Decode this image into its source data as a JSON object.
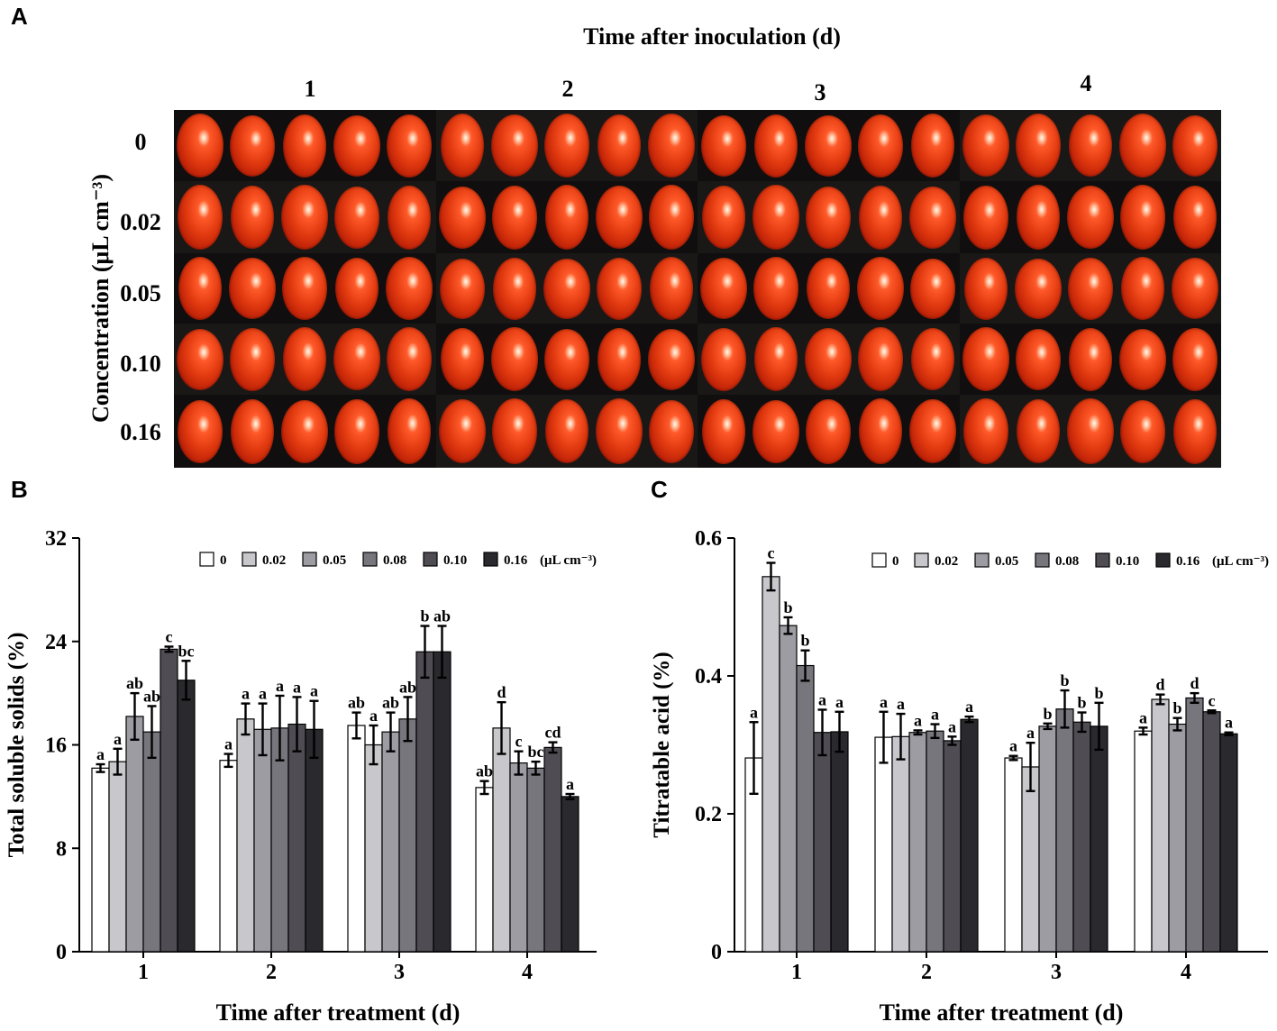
{
  "panel_labels": {
    "a": "A",
    "b": "B",
    "c": "C"
  },
  "photo_panel": {
    "title": "Time after inoculation (d)",
    "days": [
      "1",
      "2",
      "3",
      "4"
    ],
    "concentrations": [
      "0",
      "0.02",
      "0.05",
      "0.10",
      "0.16"
    ],
    "y_axis_label": "Concentration (μL cm⁻³)",
    "fruit_per_cell": 5
  },
  "colors": {
    "series": [
      "#ffffff",
      "#c8c7cc",
      "#9e9ca3",
      "#78767d",
      "#4f4d53",
      "#2a292e"
    ],
    "tomato": "#d8330c",
    "photo_background": "#141212"
  },
  "chart_data": [
    {
      "type": "bar",
      "panel": "B",
      "title": "",
      "xlabel": "Time after treatment (d)",
      "ylabel": "Total soluble solids (%)",
      "categories": [
        "1",
        "2",
        "3",
        "4"
      ],
      "ylim": [
        0,
        32
      ],
      "yticks": [
        "0",
        "8",
        "16",
        "24",
        "32"
      ],
      "legend_suffix": "(μL cm⁻³)",
      "legend_position": "top-right",
      "series": [
        {
          "name": "0",
          "values": [
            14.2,
            14.8,
            17.5,
            12.7
          ],
          "errors": [
            0.3,
            0.5,
            1.0,
            0.5
          ],
          "letters": [
            "a",
            "a",
            "ab",
            "ab"
          ]
        },
        {
          "name": "0.02",
          "values": [
            14.7,
            18.0,
            16.0,
            17.3
          ],
          "errors": [
            1.0,
            1.2,
            1.5,
            2.0
          ],
          "letters": [
            "a",
            "a",
            "a",
            "d"
          ]
        },
        {
          "name": "0.05",
          "values": [
            18.2,
            17.2,
            17.0,
            14.6
          ],
          "errors": [
            1.8,
            2.0,
            1.5,
            0.9
          ],
          "letters": [
            "ab",
            "a",
            "ab",
            "c"
          ]
        },
        {
          "name": "0.08",
          "values": [
            17.0,
            17.3,
            18.0,
            14.2
          ],
          "errors": [
            2.0,
            2.5,
            1.7,
            0.5
          ],
          "letters": [
            "ab",
            "a",
            "ab",
            "bc"
          ]
        },
        {
          "name": "0.10",
          "values": [
            23.4,
            17.6,
            23.2,
            15.8
          ],
          "errors": [
            0.2,
            2.1,
            2.0,
            0.4
          ],
          "letters": [
            "c",
            "a",
            "b",
            "cd"
          ]
        },
        {
          "name": "0.16",
          "values": [
            21.0,
            17.2,
            23.2,
            12.0
          ],
          "errors": [
            1.5,
            2.2,
            2.0,
            0.2
          ],
          "letters": [
            "bc",
            "a",
            "ab",
            "a"
          ]
        }
      ]
    },
    {
      "type": "bar",
      "panel": "C",
      "title": "",
      "xlabel": "Time after treatment (d)",
      "ylabel": "Titratable acid (%)",
      "categories": [
        "1",
        "2",
        "3",
        "4"
      ],
      "ylim": [
        0,
        0.6
      ],
      "yticks": [
        "0",
        "0.2",
        "0.4",
        "0.6"
      ],
      "legend_suffix": "(μL cm⁻³)",
      "legend_position": "top-right",
      "series": [
        {
          "name": "0",
          "values": [
            0.281,
            0.311,
            0.281,
            0.32
          ],
          "errors": [
            0.052,
            0.037,
            0.003,
            0.005
          ],
          "letters": [
            "a",
            "a",
            "a",
            "a"
          ]
        },
        {
          "name": "0.02",
          "values": [
            0.544,
            0.312,
            0.268,
            0.366
          ],
          "errors": [
            0.02,
            0.033,
            0.035,
            0.007
          ],
          "letters": [
            "c",
            "a",
            "a",
            "d"
          ]
        },
        {
          "name": "0.05",
          "values": [
            0.473,
            0.318,
            0.327,
            0.33
          ],
          "errors": [
            0.012,
            0.003,
            0.004,
            0.009
          ],
          "letters": [
            "b",
            "a",
            "b",
            "b"
          ]
        },
        {
          "name": "0.08",
          "values": [
            0.415,
            0.32,
            0.352,
            0.368
          ],
          "errors": [
            0.022,
            0.01,
            0.027,
            0.007
          ],
          "letters": [
            "b",
            "a",
            "b",
            "d"
          ]
        },
        {
          "name": "0.10",
          "values": [
            0.318,
            0.306,
            0.333,
            0.348
          ],
          "errors": [
            0.033,
            0.006,
            0.014,
            0.002
          ],
          "letters": [
            "a",
            "a",
            "b",
            "c"
          ]
        },
        {
          "name": "0.16",
          "values": [
            0.319,
            0.337,
            0.327,
            0.316
          ],
          "errors": [
            0.029,
            0.004,
            0.034,
            0.002
          ],
          "letters": [
            "a",
            "a",
            "b",
            "a"
          ]
        }
      ]
    }
  ]
}
